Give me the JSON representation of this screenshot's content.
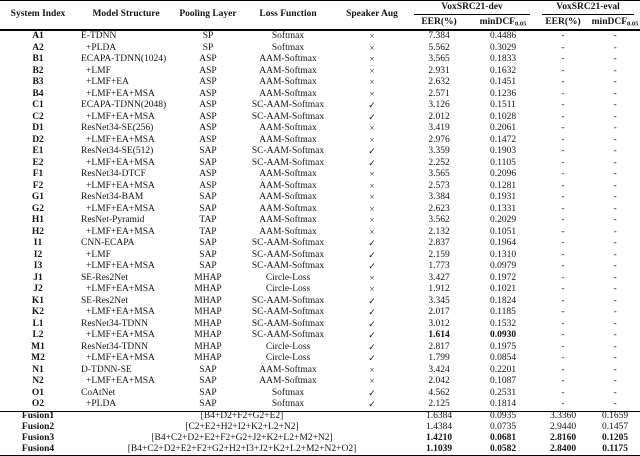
{
  "table": {
    "headers": {
      "system_index": "System Index",
      "model_structure": "Model Structure",
      "pooling_layer": "Pooling Layer",
      "loss_function": "Loss Function",
      "speaker_aug": "Speaker Aug",
      "group_dev": "VoxSRC21-dev",
      "group_eval": "VoxSRC21-eval",
      "eer_dev": "EER(%)",
      "eer_eval": "EER(%)",
      "mindcf": "minDCF",
      "mindcf_sub": "0.05"
    },
    "symbols": {
      "check": "✓",
      "cross": "×",
      "dash": "-"
    },
    "rows": [
      {
        "idx": "A1",
        "model": "E-TDNN",
        "pool": "SP",
        "loss": "Softmax",
        "aug": "×",
        "dev_eer": "7.384",
        "dev_dcf": "0.4486",
        "eval_eer": "-",
        "eval_dcf": "-"
      },
      {
        "idx": "A2",
        "model": "+PLDA",
        "pool": "SP",
        "loss": "Softmax",
        "aug": "×",
        "dev_eer": "5.562",
        "dev_dcf": "0.3029",
        "eval_eer": "-",
        "eval_dcf": "-"
      },
      {
        "idx": "B1",
        "model": "ECAPA-TDNN(1024)",
        "pool": "ASP",
        "loss": "AAM-Softmax",
        "aug": "×",
        "dev_eer": "3.565",
        "dev_dcf": "0.1833",
        "eval_eer": "-",
        "eval_dcf": "-"
      },
      {
        "idx": "B2",
        "model": "+LMF",
        "pool": "ASP",
        "loss": "AAM-Softmax",
        "aug": "×",
        "dev_eer": "2.931",
        "dev_dcf": "0.1632",
        "eval_eer": "-",
        "eval_dcf": "-"
      },
      {
        "idx": "B3",
        "model": "+LMF+EA",
        "pool": "ASP",
        "loss": "AAM-Softmax",
        "aug": "×",
        "dev_eer": "2.632",
        "dev_dcf": "0.1451",
        "eval_eer": "-",
        "eval_dcf": "-"
      },
      {
        "idx": "B4",
        "model": "+LMF+EA+MSA",
        "pool": "ASP",
        "loss": "AAM-Softmax",
        "aug": "×",
        "dev_eer": "2.571",
        "dev_dcf": "0.1236",
        "eval_eer": "-",
        "eval_dcf": "-"
      },
      {
        "idx": "C1",
        "model": "ECAPA-TDNN(2048)",
        "pool": "ASP",
        "loss": "SC-AAM-Softmax",
        "aug": "✓",
        "dev_eer": "3.126",
        "dev_dcf": "0.1511",
        "eval_eer": "-",
        "eval_dcf": "-"
      },
      {
        "idx": "C2",
        "model": "+LMF+EA+MSA",
        "pool": "ASP",
        "loss": "SC-AAM-Softmax",
        "aug": "✓",
        "dev_eer": "2.012",
        "dev_dcf": "0.1028",
        "eval_eer": "-",
        "eval_dcf": "-"
      },
      {
        "idx": "D1",
        "model": "ResNet34-SE(256)",
        "pool": "ASP",
        "loss": "AAM-Softmax",
        "aug": "×",
        "dev_eer": "3.419",
        "dev_dcf": "0.2061",
        "eval_eer": "-",
        "eval_dcf": "-"
      },
      {
        "idx": "D2",
        "model": "+LMF+EA+MSA",
        "pool": "ASP",
        "loss": "AAM-Softmax",
        "aug": "×",
        "dev_eer": "2.976",
        "dev_dcf": "0.1472",
        "eval_eer": "-",
        "eval_dcf": "-"
      },
      {
        "idx": "E1",
        "model": "ResNet34-SE(512)",
        "pool": "SAP",
        "loss": "SC-AAM-Softmax",
        "aug": "✓",
        "dev_eer": "3.359",
        "dev_dcf": "0.1903",
        "eval_eer": "-",
        "eval_dcf": "-"
      },
      {
        "idx": "E2",
        "model": "+LMF+EA+MSA",
        "pool": "SAP",
        "loss": "SC-AAM-Softmax",
        "aug": "✓",
        "dev_eer": "2.252",
        "dev_dcf": "0.1105",
        "eval_eer": "-",
        "eval_dcf": "-"
      },
      {
        "idx": "F1",
        "model": "ResNet34-DTCF",
        "pool": "ASP",
        "loss": "AAM-Softmax",
        "aug": "×",
        "dev_eer": "3.565",
        "dev_dcf": "0.2096",
        "eval_eer": "-",
        "eval_dcf": "-"
      },
      {
        "idx": "F2",
        "model": "+LMF+EA+MSA",
        "pool": "ASP",
        "loss": "AAM-Softmax",
        "aug": "×",
        "dev_eer": "2.573",
        "dev_dcf": "0.1281",
        "eval_eer": "-",
        "eval_dcf": "-"
      },
      {
        "idx": "G1",
        "model": "ResNet34-BAM",
        "pool": "SAP",
        "loss": "AAM-Softmax",
        "aug": "×",
        "dev_eer": "3.384",
        "dev_dcf": "0.1931",
        "eval_eer": "-",
        "eval_dcf": "-"
      },
      {
        "idx": "G2",
        "model": "+LMF+EA+MSA",
        "pool": "SAP",
        "loss": "AAM-Softmax",
        "aug": "×",
        "dev_eer": "2.623",
        "dev_dcf": "0.1331",
        "eval_eer": "-",
        "eval_dcf": "-"
      },
      {
        "idx": "H1",
        "model": "ResNet-Pyramid",
        "pool": "TAP",
        "loss": "AAM-Softmax",
        "aug": "×",
        "dev_eer": "3.562",
        "dev_dcf": "0.2029",
        "eval_eer": "-",
        "eval_dcf": "-"
      },
      {
        "idx": "H2",
        "model": "+LMF+EA+MSA",
        "pool": "TAP",
        "loss": "AAM-Softmax",
        "aug": "×",
        "dev_eer": "2.132",
        "dev_dcf": "0.1051",
        "eval_eer": "-",
        "eval_dcf": "-"
      },
      {
        "idx": "I1",
        "model": "CNN-ECAPA",
        "pool": "SAP",
        "loss": "SC-AAM-Softmax",
        "aug": "✓",
        "dev_eer": "2.837",
        "dev_dcf": "0.1964",
        "eval_eer": "-",
        "eval_dcf": "-"
      },
      {
        "idx": "I2",
        "model": "+LMF",
        "pool": "SAP",
        "loss": "SC-AAM-Softmax",
        "aug": "✓",
        "dev_eer": "2.159",
        "dev_dcf": "0.1310",
        "eval_eer": "-",
        "eval_dcf": "-"
      },
      {
        "idx": "I3",
        "model": "+LMF+EA+MSA",
        "pool": "SAP",
        "loss": "SC-AAM-Softmax",
        "aug": "✓",
        "dev_eer": "1.773",
        "dev_dcf": "0.0979",
        "eval_eer": "-",
        "eval_dcf": "-"
      },
      {
        "idx": "J1",
        "model": "SE-Res2Net",
        "pool": "MHAP",
        "loss": "Circle-Loss",
        "aug": "×",
        "dev_eer": "3.427",
        "dev_dcf": "0.1972",
        "eval_eer": "-",
        "eval_dcf": "-"
      },
      {
        "idx": "J2",
        "model": "+LMF+EA+MSA",
        "pool": "MHAP",
        "loss": "Circle-Loss",
        "aug": "×",
        "dev_eer": "1.912",
        "dev_dcf": "0.1021",
        "eval_eer": "-",
        "eval_dcf": "-"
      },
      {
        "idx": "K1",
        "model": "SE-Res2Net",
        "pool": "MHAP",
        "loss": "SC-AAM-Softmax",
        "aug": "✓",
        "dev_eer": "3.345",
        "dev_dcf": "0.1824",
        "eval_eer": "-",
        "eval_dcf": "-"
      },
      {
        "idx": "K2",
        "model": "+LMF+EA+MSA",
        "pool": "MHAP",
        "loss": "SC-AAM-Softmax",
        "aug": "✓",
        "dev_eer": "2.017",
        "dev_dcf": "0.1185",
        "eval_eer": "-",
        "eval_dcf": "-"
      },
      {
        "idx": "L1",
        "model": "ResNet34-TDNN",
        "pool": "MHAP",
        "loss": "SC-AAM-Softmax",
        "aug": "✓",
        "dev_eer": "3.012",
        "dev_dcf": "0.1532",
        "eval_eer": "-",
        "eval_dcf": "-"
      },
      {
        "idx": "L2",
        "model": "+LMF+EA+MSA",
        "pool": "MHAP",
        "loss": "SC-AAM-Softmax",
        "aug": "✓",
        "dev_eer": "1.614",
        "dev_dcf": "0.0930",
        "eval_eer": "-",
        "eval_dcf": "-",
        "bold": [
          "dev_eer",
          "dev_dcf"
        ]
      },
      {
        "idx": "M1",
        "model": "ResNet34-TDNN",
        "pool": "MHAP",
        "loss": "Circle-Loss",
        "aug": "✓",
        "dev_eer": "2.817",
        "dev_dcf": "0.1975",
        "eval_eer": "-",
        "eval_dcf": "-"
      },
      {
        "idx": "M2",
        "model": "+LMF+EA+MSA",
        "pool": "MHAP",
        "loss": "Circle-Loss",
        "aug": "✓",
        "dev_eer": "1.799",
        "dev_dcf": "0.0854",
        "eval_eer": "-",
        "eval_dcf": "-"
      },
      {
        "idx": "N1",
        "model": "D-TDNN-SE",
        "pool": "SAP",
        "loss": "AAM-Softmax",
        "aug": "×",
        "dev_eer": "3.424",
        "dev_dcf": "0.2201",
        "eval_eer": "-",
        "eval_dcf": "-"
      },
      {
        "idx": "N2",
        "model": "+LMF+EA+MSA",
        "pool": "SAP",
        "loss": "AAM-Softmax",
        "aug": "×",
        "dev_eer": "2.042",
        "dev_dcf": "0.1087",
        "eval_eer": "-",
        "eval_dcf": "-"
      },
      {
        "idx": "O1",
        "model": "CoAtNet",
        "pool": "SAP",
        "loss": "Softmax",
        "aug": "✓",
        "dev_eer": "4.562",
        "dev_dcf": "0.2531",
        "eval_eer": "-",
        "eval_dcf": "-"
      },
      {
        "idx": "O2",
        "model": "+PLDA",
        "pool": "SAP",
        "loss": "Softmax",
        "aug": "✓",
        "dev_eer": "2.125",
        "dev_dcf": "0.1814",
        "eval_eer": "-",
        "eval_dcf": "-"
      }
    ],
    "fusion_rows": [
      {
        "idx": "Fusion1",
        "combo": "[B4+D2+F2+G2+E2]",
        "dev_eer": "1.6384",
        "dev_dcf": "0.0935",
        "eval_eer": "3.3360",
        "eval_dcf": "0.1659",
        "bold_values": false
      },
      {
        "idx": "Fusion2",
        "combo": "[C2+E2+H2+I2+K2+L2+N2]",
        "dev_eer": "1.4384",
        "dev_dcf": "0.0735",
        "eval_eer": "2.9440",
        "eval_dcf": "0.1457",
        "bold_values": false
      },
      {
        "idx": "Fusion3",
        "combo": "[B4+C2+D2+E2+F2+G2+J2+K2+L2+M2+N2]",
        "dev_eer": "1.4210",
        "dev_dcf": "0.0681",
        "eval_eer": "2.8160",
        "eval_dcf": "0.1205",
        "bold_values": true
      },
      {
        "idx": "Fusion4",
        "combo": "[B4+C2+D2+E2+F2+G2+H2+I3+J2+K2+L2+M2+N2+O2]",
        "dev_eer": "1.1039",
        "dev_dcf": "0.0582",
        "eval_eer": "2.8400",
        "eval_dcf": "0.1175",
        "bold_values": true
      }
    ]
  }
}
